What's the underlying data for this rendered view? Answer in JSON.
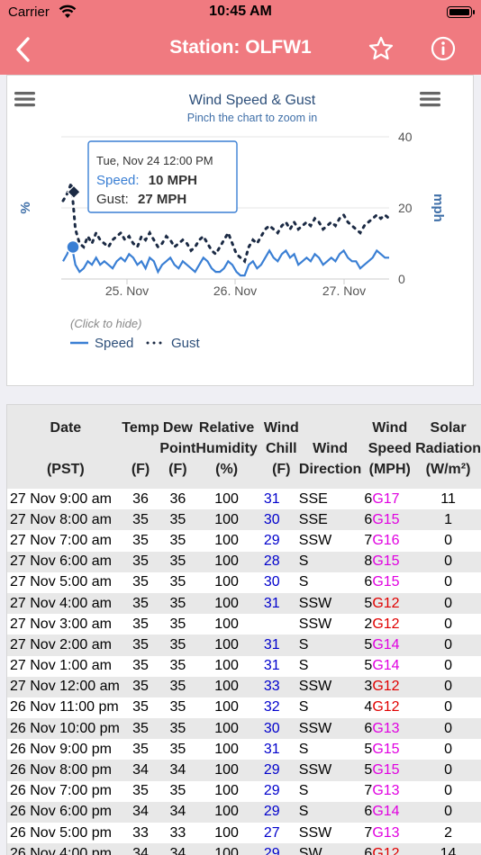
{
  "status_bar": {
    "carrier": "Carrier",
    "time": "10:45 AM"
  },
  "nav": {
    "title": "Station: OLFW1",
    "back_icon": "chevron-left-icon",
    "favorite_icon": "star-icon",
    "info_icon": "info-icon"
  },
  "chart": {
    "title": "Wind Speed & Gust",
    "subtitle": "Pinch the chart to zoom in",
    "y_left_label": "%",
    "y_right_label": "mph",
    "y_ticks": [
      "40",
      "20",
      "0"
    ],
    "x_ticks": [
      "25. Nov",
      "26. Nov",
      "27. Nov"
    ],
    "tooltip": {
      "date": "Tue, Nov 24 12:00 PM",
      "speed_label": "Speed:",
      "speed_value": "10 MPH",
      "gust_label": "Gust:",
      "gust_value": "27 MPH"
    },
    "legend_hint": "(Click to hide)",
    "legend": [
      "Speed",
      "Gust"
    ],
    "colors": {
      "speed": "#3a7fd4",
      "gust": "#1b2a44",
      "axis_label": "#3f6fa8"
    }
  },
  "chart_data": {
    "type": "line",
    "title": "Wind Speed & Gust",
    "subtitle": "Pinch the chart to zoom in",
    "ylabel": "mph",
    "ylim": [
      0,
      40
    ],
    "x_ticks": [
      "25. Nov",
      "26. Nov",
      "27. Nov"
    ],
    "series": [
      {
        "name": "Speed",
        "values": [
          5,
          7,
          10,
          4,
          2,
          3,
          5,
          4,
          6,
          4,
          5,
          4,
          3,
          5,
          6,
          5,
          7,
          6,
          4,
          5,
          3,
          6,
          5,
          2,
          4,
          5,
          6,
          4,
          3,
          5,
          4,
          3,
          2,
          4,
          6,
          5,
          3,
          2,
          2,
          3,
          5,
          4,
          2,
          1,
          1,
          4,
          5,
          3,
          4,
          6,
          8,
          6,
          5,
          7,
          8,
          6,
          7,
          4,
          5,
          6,
          5,
          7,
          6,
          4,
          5,
          6,
          5,
          7,
          8,
          6,
          5,
          5,
          3,
          4,
          5,
          6,
          8,
          7,
          6,
          6
        ]
      },
      {
        "name": "Gust",
        "values": [
          22,
          24,
          27,
          14,
          10,
          9,
          12,
          10,
          13,
          11,
          10,
          9,
          11,
          12,
          13,
          11,
          12,
          10,
          9,
          12,
          11,
          13,
          11,
          9,
          10,
          12,
          11,
          9,
          10,
          11,
          10,
          8,
          9,
          11,
          12,
          10,
          8,
          7,
          9,
          11,
          13,
          10,
          7,
          6,
          5,
          9,
          11,
          10,
          12,
          14,
          15,
          14,
          13,
          15,
          16,
          14,
          16,
          14,
          15,
          16,
          15,
          17,
          16,
          14,
          15,
          16,
          15,
          17,
          18,
          16,
          15,
          14,
          13,
          15,
          16,
          17,
          18,
          17,
          18,
          17
        ]
      }
    ],
    "tooltip": {
      "date": "Tue, Nov 24 12:00 PM",
      "speed": 10,
      "gust": 27
    }
  },
  "table": {
    "headers": [
      [
        "Date",
        "",
        "(PST)"
      ],
      [
        "Temp",
        "",
        "(F)"
      ],
      [
        "Dew",
        "Point",
        "(F)"
      ],
      [
        "Relative",
        "Humidity",
        "(%)"
      ],
      [
        "Wind",
        "Chill",
        "(F)"
      ],
      [
        "",
        "Wind",
        "Direction"
      ],
      [
        "Wind",
        "Speed",
        "(MPH)"
      ],
      [
        "Solar",
        "Radiation",
        "(W/m²)"
      ]
    ],
    "rows": [
      {
        "date": "27 Nov 9:00 am",
        "temp": "36",
        "dew": "36",
        "rh": "100",
        "chill": "31",
        "dir": "SSE",
        "speed": "6",
        "gust": "G17",
        "gust_color": "#e000e0",
        "solar": "11"
      },
      {
        "date": "27 Nov 8:00 am",
        "temp": "35",
        "dew": "35",
        "rh": "100",
        "chill": "30",
        "dir": "SSE",
        "speed": "6",
        "gust": "G15",
        "gust_color": "#e000e0",
        "solar": "1"
      },
      {
        "date": "27 Nov 7:00 am",
        "temp": "35",
        "dew": "35",
        "rh": "100",
        "chill": "29",
        "dir": "SSW",
        "speed": "7",
        "gust": "G16",
        "gust_color": "#e000e0",
        "solar": "0"
      },
      {
        "date": "27 Nov 6:00 am",
        "temp": "35",
        "dew": "35",
        "rh": "100",
        "chill": "28",
        "dir": "S",
        "speed": "8",
        "gust": "G15",
        "gust_color": "#e000e0",
        "solar": "0"
      },
      {
        "date": "27 Nov 5:00 am",
        "temp": "35",
        "dew": "35",
        "rh": "100",
        "chill": "30",
        "dir": "S",
        "speed": "6",
        "gust": "G15",
        "gust_color": "#e000e0",
        "solar": "0"
      },
      {
        "date": "27 Nov 4:00 am",
        "temp": "35",
        "dew": "35",
        "rh": "100",
        "chill": "31",
        "dir": "SSW",
        "speed": "5",
        "gust": "G12",
        "gust_color": "#e00000",
        "solar": "0"
      },
      {
        "date": "27 Nov 3:00 am",
        "temp": "35",
        "dew": "35",
        "rh": "100",
        "chill": "",
        "dir": "SSW",
        "speed": "2",
        "gust": "G12",
        "gust_color": "#e00000",
        "solar": "0"
      },
      {
        "date": "27 Nov 2:00 am",
        "temp": "35",
        "dew": "35",
        "rh": "100",
        "chill": "31",
        "dir": "S",
        "speed": "5",
        "gust": "G14",
        "gust_color": "#e000e0",
        "solar": "0"
      },
      {
        "date": "27 Nov 1:00 am",
        "temp": "35",
        "dew": "35",
        "rh": "100",
        "chill": "31",
        "dir": "S",
        "speed": "5",
        "gust": "G14",
        "gust_color": "#e000e0",
        "solar": "0"
      },
      {
        "date": "27 Nov 12:00 am",
        "temp": "35",
        "dew": "35",
        "rh": "100",
        "chill": "33",
        "dir": "SSW",
        "speed": "3",
        "gust": "G12",
        "gust_color": "#e00000",
        "solar": "0"
      },
      {
        "date": "26 Nov 11:00 pm",
        "temp": "35",
        "dew": "35",
        "rh": "100",
        "chill": "32",
        "dir": "S",
        "speed": "4",
        "gust": "G12",
        "gust_color": "#e00000",
        "solar": "0"
      },
      {
        "date": "26 Nov 10:00 pm",
        "temp": "35",
        "dew": "35",
        "rh": "100",
        "chill": "30",
        "dir": "SSW",
        "speed": "6",
        "gust": "G13",
        "gust_color": "#e000e0",
        "solar": "0"
      },
      {
        "date": "26 Nov 9:00 pm",
        "temp": "35",
        "dew": "35",
        "rh": "100",
        "chill": "31",
        "dir": "S",
        "speed": "5",
        "gust": "G15",
        "gust_color": "#e000e0",
        "solar": "0"
      },
      {
        "date": "26 Nov 8:00 pm",
        "temp": "34",
        "dew": "34",
        "rh": "100",
        "chill": "29",
        "dir": "SSW",
        "speed": "5",
        "gust": "G15",
        "gust_color": "#e000e0",
        "solar": "0"
      },
      {
        "date": "26 Nov 7:00 pm",
        "temp": "35",
        "dew": "35",
        "rh": "100",
        "chill": "29",
        "dir": "S",
        "speed": "7",
        "gust": "G13",
        "gust_color": "#e000e0",
        "solar": "0"
      },
      {
        "date": "26 Nov 6:00 pm",
        "temp": "34",
        "dew": "34",
        "rh": "100",
        "chill": "29",
        "dir": "S",
        "speed": "6",
        "gust": "G14",
        "gust_color": "#e000e0",
        "solar": "0"
      },
      {
        "date": "26 Nov 5:00 pm",
        "temp": "33",
        "dew": "33",
        "rh": "100",
        "chill": "27",
        "dir": "SSW",
        "speed": "7",
        "gust": "G13",
        "gust_color": "#e000e0",
        "solar": "2"
      },
      {
        "date": "26 Nov 4:00 pm",
        "temp": "34",
        "dew": "34",
        "rh": "100",
        "chill": "29",
        "dir": "SW",
        "speed": "6",
        "gust": "G12",
        "gust_color": "#e00000",
        "solar": "14"
      }
    ]
  }
}
